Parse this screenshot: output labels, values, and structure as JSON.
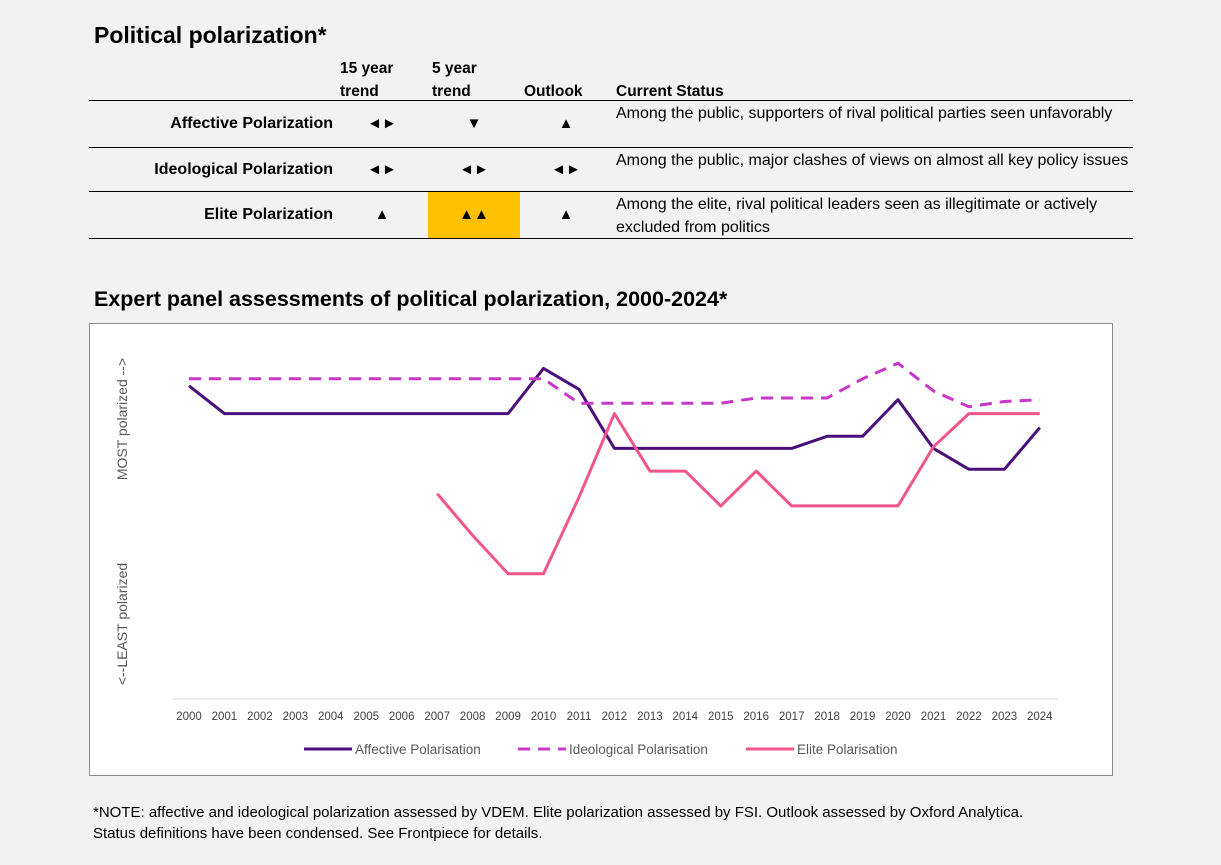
{
  "title": "Political polarization*",
  "table": {
    "columns": [
      "15 year trend",
      "5 year trend",
      "Outlook",
      "Current Status"
    ],
    "col_15_line1": "15 year",
    "col_15_line2": "trend",
    "col_5_line1": "5 year",
    "col_5_line2": "trend",
    "col_outlook": "Outlook",
    "col_status": "Current Status",
    "rows": [
      {
        "label": "Affective Polarization",
        "trend15": "◄►",
        "trend5": "▼",
        "outlook": "▲",
        "status": "Among the public, supporters of rival political parties seen unfavorably",
        "highlight_trend5": false
      },
      {
        "label": "Ideological Polarization",
        "trend15": "◄►",
        "trend5": "◄►",
        "outlook": "◄►",
        "status": "Among the public, major clashes of views on almost all key policy issues",
        "highlight_trend5": false
      },
      {
        "label": "Elite Polarization",
        "trend15": "▲",
        "trend5": "▲▲",
        "outlook": "▲",
        "status": "Among the elite, rival political leaders seen as illegitimate or actively excluded from politics",
        "highlight_trend5": true
      }
    ],
    "highlight_color": "#ffc000"
  },
  "chart_title": "Expert panel assessments of political polarization, 2000-2024*",
  "chart_data": {
    "type": "line",
    "x": [
      "2000",
      "2001",
      "2002",
      "2003",
      "2004",
      "2005",
      "2006",
      "2007",
      "2008",
      "2009",
      "2010",
      "2011",
      "2012",
      "2013",
      "2014",
      "2015",
      "2016",
      "2017",
      "2018",
      "2019",
      "2020",
      "2021",
      "2022",
      "2023",
      "2024"
    ],
    "ylabel_top": "MOST polarized -->",
    "ylabel_bottom": "<--LEAST polarized",
    "ylim": [
      0,
      10
    ],
    "grid": false,
    "legend_position": "bottom",
    "series": [
      {
        "name": "Affective Polarisation",
        "color": "#4b0f7b",
        "dash": "solid",
        "values": [
          9.0,
          8.2,
          8.2,
          8.2,
          8.2,
          8.2,
          8.2,
          8.2,
          8.2,
          8.2,
          9.5,
          8.9,
          7.2,
          7.2,
          7.2,
          7.2,
          7.2,
          7.2,
          7.55,
          7.55,
          8.6,
          7.2,
          6.6,
          6.6,
          7.8
        ]
      },
      {
        "name": "Ideological Polarisation",
        "color": "#c837c8",
        "dash": "dashed",
        "values": [
          9.2,
          9.2,
          9.2,
          9.2,
          9.2,
          9.2,
          9.2,
          9.2,
          9.2,
          9.2,
          9.2,
          8.5,
          8.5,
          8.5,
          8.5,
          8.5,
          8.65,
          8.65,
          8.65,
          9.2,
          9.65,
          8.85,
          8.4,
          8.55,
          8.6
        ]
      },
      {
        "name": "Elite Polarisation",
        "color": "#f0558c",
        "dash": "solid",
        "values": [
          null,
          null,
          null,
          null,
          null,
          null,
          null,
          5.9,
          4.7,
          3.6,
          3.6,
          5.8,
          8.2,
          6.55,
          6.55,
          5.55,
          6.55,
          5.55,
          5.55,
          5.55,
          5.55,
          7.25,
          8.2,
          8.2,
          8.2
        ]
      }
    ]
  },
  "note_line1": "*NOTE: affective and ideological polarization assessed by VDEM. Elite polarization assessed by FSI. Outlook assessed by Oxford Analytica.",
  "note_line2": "Status definitions have been condensed. See Frontpiece for details."
}
